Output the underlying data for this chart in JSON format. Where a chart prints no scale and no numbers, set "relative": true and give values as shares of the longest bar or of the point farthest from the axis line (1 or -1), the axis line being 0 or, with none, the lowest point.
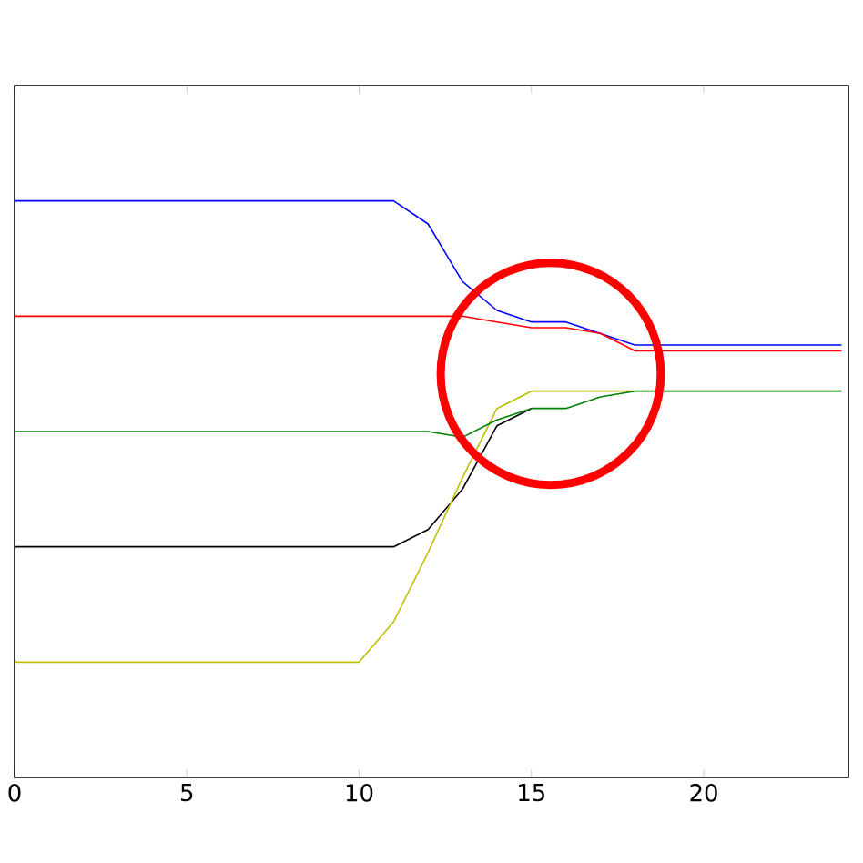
{
  "chart_data": {
    "type": "line",
    "relative": true,
    "marker": "none",
    "line_style": "solid",
    "x": [
      0,
      1,
      2,
      3,
      4,
      5,
      6,
      7,
      8,
      9,
      10,
      11,
      12,
      13,
      14,
      15,
      16,
      17,
      18,
      19,
      20,
      21,
      22,
      23,
      24
    ],
    "xlim": [
      0,
      24.2
    ],
    "xticks": [
      0,
      5,
      10,
      15,
      20
    ],
    "series": [
      {
        "color": "#0000ff",
        "values": [
          1,
          1,
          1,
          1,
          1,
          1,
          1,
          1,
          1,
          1,
          1,
          1,
          0.96,
          0.86,
          0.81,
          0.79,
          0.79,
          0.77,
          0.75,
          0.75,
          0.75,
          0.75,
          0.75,
          0.75,
          0.75
        ]
      },
      {
        "color": "#ff0000",
        "values": [
          0.8,
          0.8,
          0.8,
          0.8,
          0.8,
          0.8,
          0.8,
          0.8,
          0.8,
          0.8,
          0.8,
          0.8,
          0.8,
          0.8,
          0.79,
          0.78,
          0.78,
          0.77,
          0.74,
          0.74,
          0.74,
          0.74,
          0.74,
          0.74,
          0.74
        ]
      },
      {
        "color": "#000000",
        "values": [
          0.4,
          0.4,
          0.4,
          0.4,
          0.4,
          0.4,
          0.4,
          0.4,
          0.4,
          0.4,
          0.4,
          0.4,
          0.43,
          0.5,
          0.61,
          0.64,
          null,
          null,
          null,
          null,
          null,
          null,
          null,
          null,
          null
        ]
      },
      {
        "color": "#bfbf00",
        "values": [
          0.2,
          0.2,
          0.2,
          0.2,
          0.2,
          0.2,
          0.2,
          0.2,
          0.2,
          0.2,
          0.2,
          0.27,
          0.39,
          0.52,
          0.64,
          0.67,
          0.67,
          0.67,
          0.67,
          null,
          null,
          null,
          null,
          null,
          null
        ]
      },
      {
        "color": "#008000",
        "values": [
          0.6,
          0.6,
          0.6,
          0.6,
          0.6,
          0.6,
          0.6,
          0.6,
          0.6,
          0.6,
          0.6,
          0.6,
          0.6,
          0.59,
          0.62,
          0.64,
          0.64,
          0.66,
          0.67,
          0.67,
          0.67,
          0.67,
          0.67,
          0.67,
          0.67
        ]
      }
    ]
  }
}
